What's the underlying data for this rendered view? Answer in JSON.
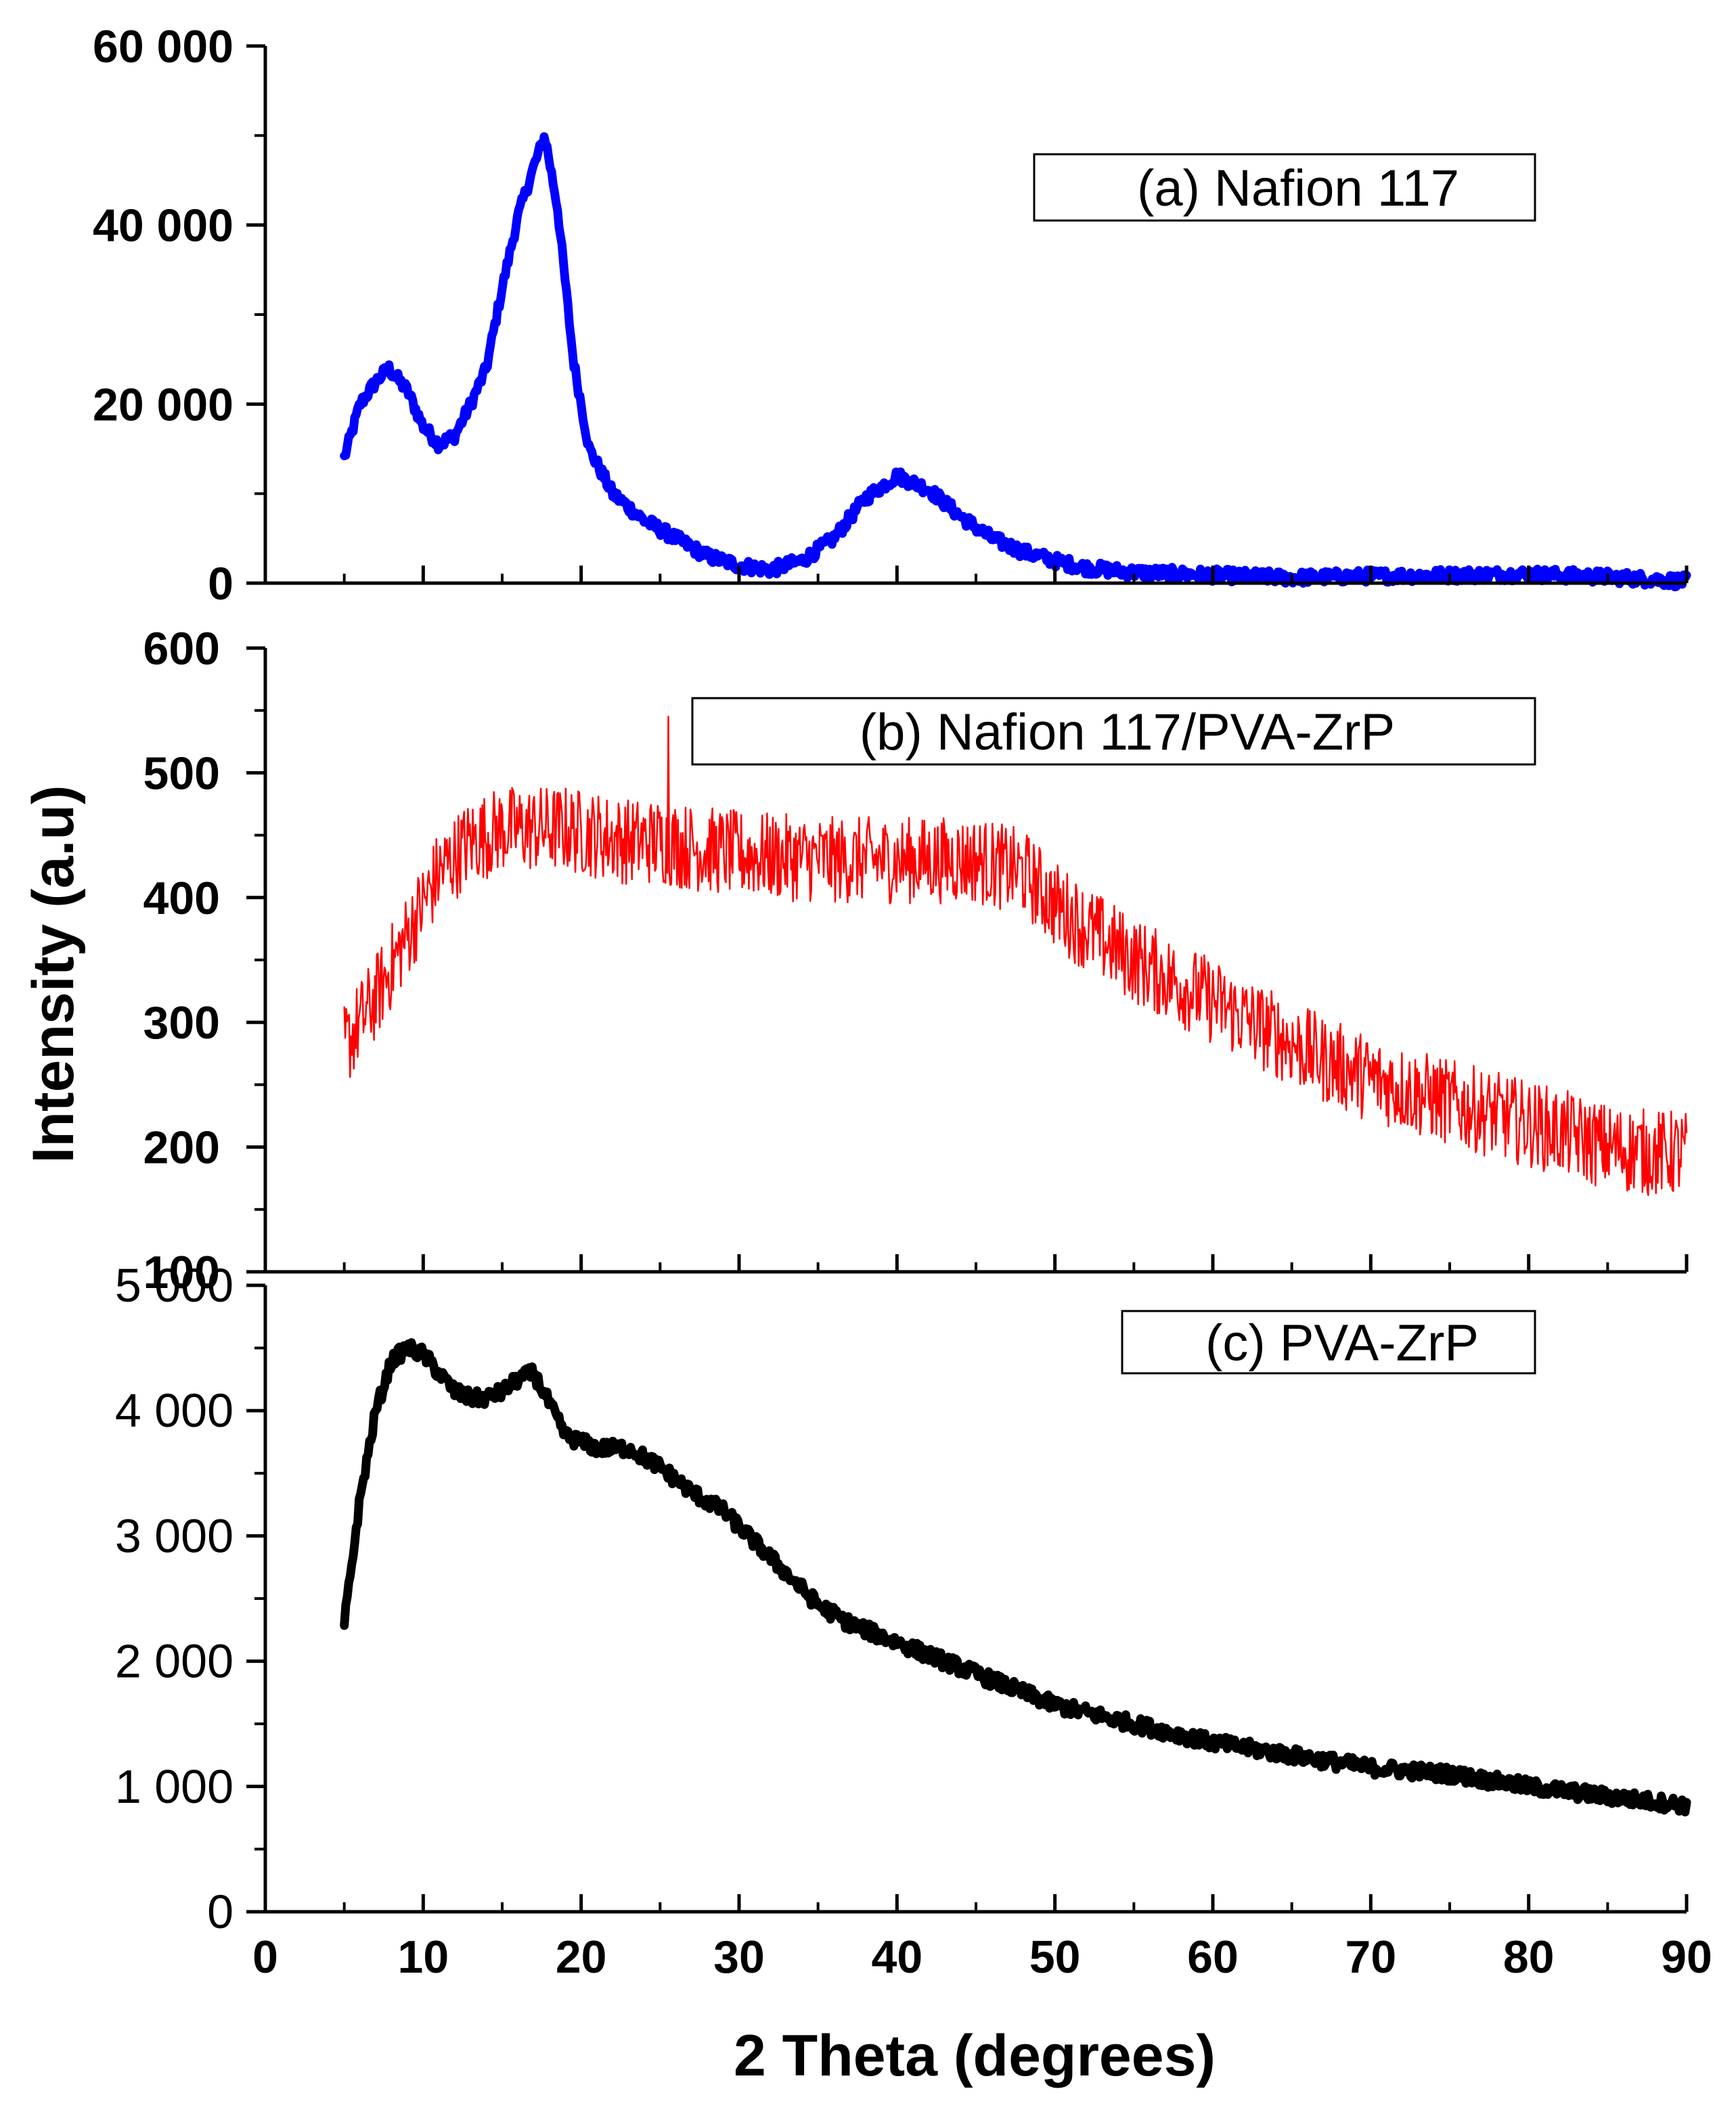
{
  "colors": {
    "a": "#0000ff",
    "b": "#ff0000",
    "c": "#000000",
    "axis": "#000000"
  },
  "chart_data": {
    "type": "line",
    "title": "",
    "xlabel": "2 Theta (degrees)",
    "ylabel": "Intensity (a.u)",
    "xlim": [
      0,
      90
    ],
    "x_ticks": [
      0,
      10,
      20,
      30,
      40,
      50,
      60,
      70,
      80,
      90
    ],
    "x_tick_labels": [
      "0",
      "10",
      "20",
      "30",
      "40",
      "50",
      "60",
      "70",
      "80",
      "90"
    ],
    "panels": [
      {
        "name": "(a) Nafion 117",
        "legend": "(a) Nafion 117",
        "ylim": [
          0,
          60000
        ],
        "y_ticks": [
          0,
          20000,
          40000,
          60000
        ],
        "y_tick_labels": [
          "0",
          "20 000",
          "40 000",
          "60 000"
        ],
        "points": [
          [
            5,
            14000
          ],
          [
            6,
            20000
          ],
          [
            7,
            22500
          ],
          [
            7.8,
            24000
          ],
          [
            9,
            21500
          ],
          [
            10,
            17500
          ],
          [
            11,
            15500
          ],
          [
            12,
            16500
          ],
          [
            13,
            20000
          ],
          [
            14,
            24000
          ],
          [
            15,
            33000
          ],
          [
            16,
            41000
          ],
          [
            17,
            46500
          ],
          [
            17.7,
            50000
          ],
          [
            18.5,
            42000
          ],
          [
            19.5,
            25000
          ],
          [
            20.5,
            15000
          ],
          [
            22,
            10000
          ],
          [
            24,
            7000
          ],
          [
            26,
            5000
          ],
          [
            28,
            3000
          ],
          [
            30,
            2000
          ],
          [
            32,
            1500
          ],
          [
            34,
            2500
          ],
          [
            36,
            5000
          ],
          [
            38,
            9500
          ],
          [
            40,
            12000
          ],
          [
            42,
            10500
          ],
          [
            44,
            7500
          ],
          [
            46,
            5000
          ],
          [
            48,
            3500
          ],
          [
            50,
            2500
          ],
          [
            52,
            1700
          ],
          [
            55,
            1200
          ],
          [
            60,
            900
          ],
          [
            65,
            600
          ],
          [
            70,
            800
          ],
          [
            75,
            900
          ],
          [
            80,
            1000
          ],
          [
            85,
            700
          ],
          [
            90,
            200
          ]
        ]
      },
      {
        "name": "(b) Nafion 117/PVA-ZrP",
        "legend": "(b) Nafion 117/PVA-ZrP",
        "ylim": [
          100,
          600
        ],
        "y_ticks": [
          100,
          200,
          300,
          400,
          500,
          600
        ],
        "y_tick_labels": [
          "100",
          "200",
          "300",
          "400",
          "500",
          "600"
        ],
        "points": [
          [
            5,
            280
          ],
          [
            7,
            320
          ],
          [
            9,
            370
          ],
          [
            11,
            420
          ],
          [
            13,
            445
          ],
          [
            15,
            455
          ],
          [
            17,
            455
          ],
          [
            19,
            455
          ],
          [
            21,
            450
          ],
          [
            23,
            445
          ],
          [
            25,
            445
          ],
          [
            27,
            440
          ],
          [
            30,
            435
          ],
          [
            33,
            432
          ],
          [
            36,
            430
          ],
          [
            39,
            430
          ],
          [
            42,
            430
          ],
          [
            45,
            430
          ],
          [
            48,
            420
          ],
          [
            50,
            395
          ],
          [
            52,
            375
          ],
          [
            55,
            350
          ],
          [
            58,
            330
          ],
          [
            61,
            310
          ],
          [
            64,
            290
          ],
          [
            67,
            270
          ],
          [
            70,
            255
          ],
          [
            73,
            243
          ],
          [
            76,
            232
          ],
          [
            79,
            222
          ],
          [
            82,
            212
          ],
          [
            85,
            200
          ],
          [
            88,
            195
          ],
          [
            90,
            195
          ]
        ],
        "spikes": [
          [
            25.5,
            545
          ]
        ]
      },
      {
        "name": "(c) PVA-ZrP",
        "legend": "(c) PVA-ZrP",
        "ylim": [
          0,
          5000
        ],
        "y_ticks": [
          0,
          1000,
          2000,
          3000,
          4000,
          5000
        ],
        "y_tick_labels": [
          "0",
          "1 000",
          "2 000",
          "3 000",
          "4 000",
          "5 000"
        ],
        "points": [
          [
            5,
            2300
          ],
          [
            6,
            3300
          ],
          [
            7,
            4000
          ],
          [
            8,
            4400
          ],
          [
            9,
            4500
          ],
          [
            10,
            4450
          ],
          [
            11,
            4300
          ],
          [
            12,
            4150
          ],
          [
            13,
            4100
          ],
          [
            14,
            4100
          ],
          [
            15,
            4150
          ],
          [
            16,
            4250
          ],
          [
            17,
            4300
          ],
          [
            18,
            4050
          ],
          [
            19,
            3800
          ],
          [
            20,
            3750
          ],
          [
            21,
            3700
          ],
          [
            22,
            3700
          ],
          [
            23,
            3700
          ],
          [
            25,
            3550
          ],
          [
            27,
            3350
          ],
          [
            29,
            3200
          ],
          [
            31,
            2950
          ],
          [
            33,
            2700
          ],
          [
            35,
            2450
          ],
          [
            37,
            2300
          ],
          [
            40,
            2150
          ],
          [
            43,
            2000
          ],
          [
            46,
            1850
          ],
          [
            50,
            1650
          ],
          [
            55,
            1500
          ],
          [
            60,
            1350
          ],
          [
            65,
            1250
          ],
          [
            70,
            1150
          ],
          [
            75,
            1100
          ],
          [
            80,
            1000
          ],
          [
            85,
            920
          ],
          [
            90,
            850
          ]
        ]
      }
    ]
  }
}
